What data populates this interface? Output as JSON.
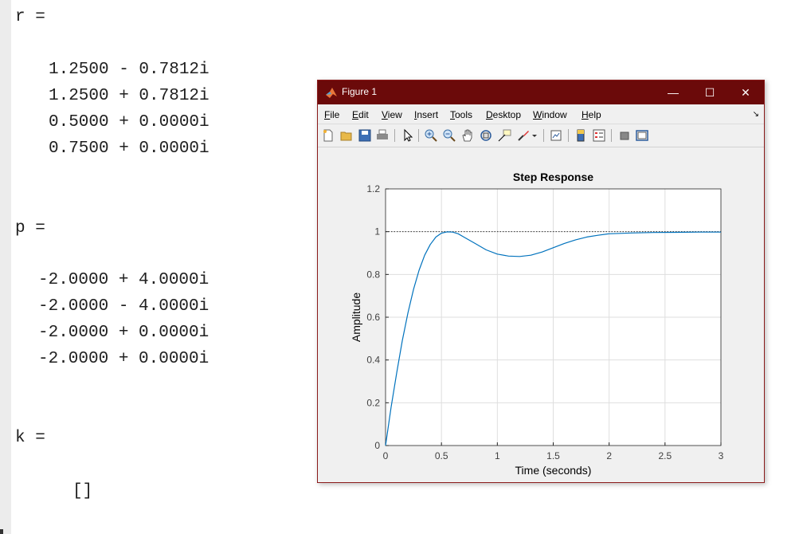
{
  "console": {
    "r_label": "r =",
    "r_values": [
      "1.2500 - 0.7812i",
      "1.2500 + 0.7812i",
      "0.5000 + 0.0000i",
      "0.7500 + 0.0000i"
    ],
    "p_label": "p =",
    "p_values": [
      "-2.0000 + 4.0000i",
      "-2.0000 - 4.0000i",
      "-2.0000 + 0.0000i",
      "-2.0000 + 0.0000i"
    ],
    "k_label": "k =",
    "k_value": "[]"
  },
  "figure": {
    "window_title": "Figure 1",
    "title_bar_color": "#6b0a0a",
    "window_buttons": {
      "minimize": "—",
      "maximize": "☐",
      "close": "✕"
    },
    "menu": [
      {
        "key": "F",
        "rest": "ile"
      },
      {
        "key": "E",
        "rest": "dit"
      },
      {
        "key": "V",
        "rest": "iew"
      },
      {
        "key": "I",
        "rest": "nsert"
      },
      {
        "key": "T",
        "rest": "ools"
      },
      {
        "key": "D",
        "rest": "esktop"
      },
      {
        "key": "W",
        "rest": "indow"
      },
      {
        "key": "H",
        "rest": "elp"
      }
    ],
    "menu_arrow": "↘",
    "toolbar_icons": [
      "new-figure-icon",
      "open-file-icon",
      "save-icon",
      "print-icon",
      "pointer-icon",
      "zoom-in-icon",
      "zoom-out-icon",
      "pan-hand-icon",
      "rotate-3d-icon",
      "data-cursor-icon",
      "brush-icon",
      "brush-dropdown-icon",
      "link-plot-icon",
      "colorbar-icon",
      "legend-icon",
      "hide-plot-tools-icon",
      "show-plot-tools-icon"
    ]
  },
  "chart_data": {
    "type": "line",
    "title": "Step Response",
    "xlabel": "Time (seconds)",
    "ylabel": "Amplitude",
    "xlim": [
      0,
      3
    ],
    "ylim": [
      0,
      1.2
    ],
    "xticks": [
      "0",
      "0.5",
      "1",
      "1.5",
      "2",
      "2.5",
      "3"
    ],
    "yticks": [
      "0",
      "0.2",
      "0.4",
      "0.6",
      "0.8",
      "1",
      "1.2"
    ],
    "grid": true,
    "reference_line": 1,
    "line_color": "#0072bd",
    "series": [
      {
        "x": [
          0,
          0.05,
          0.1,
          0.15,
          0.2,
          0.25,
          0.3,
          0.35,
          0.4,
          0.45,
          0.5,
          0.55,
          0.6,
          0.65,
          0.7,
          0.8,
          0.9,
          1.0,
          1.1,
          1.2,
          1.3,
          1.4,
          1.5,
          1.6,
          1.7,
          1.8,
          1.9,
          2.0,
          2.2,
          2.4,
          2.6,
          2.8,
          3.0
        ],
        "y": [
          0,
          0.18,
          0.34,
          0.49,
          0.62,
          0.73,
          0.82,
          0.89,
          0.94,
          0.975,
          0.993,
          0.999,
          0.998,
          0.99,
          0.975,
          0.945,
          0.915,
          0.895,
          0.886,
          0.884,
          0.89,
          0.905,
          0.925,
          0.945,
          0.962,
          0.975,
          0.983,
          0.99,
          0.994,
          0.996,
          0.997,
          0.998,
          0.998
        ]
      }
    ]
  }
}
